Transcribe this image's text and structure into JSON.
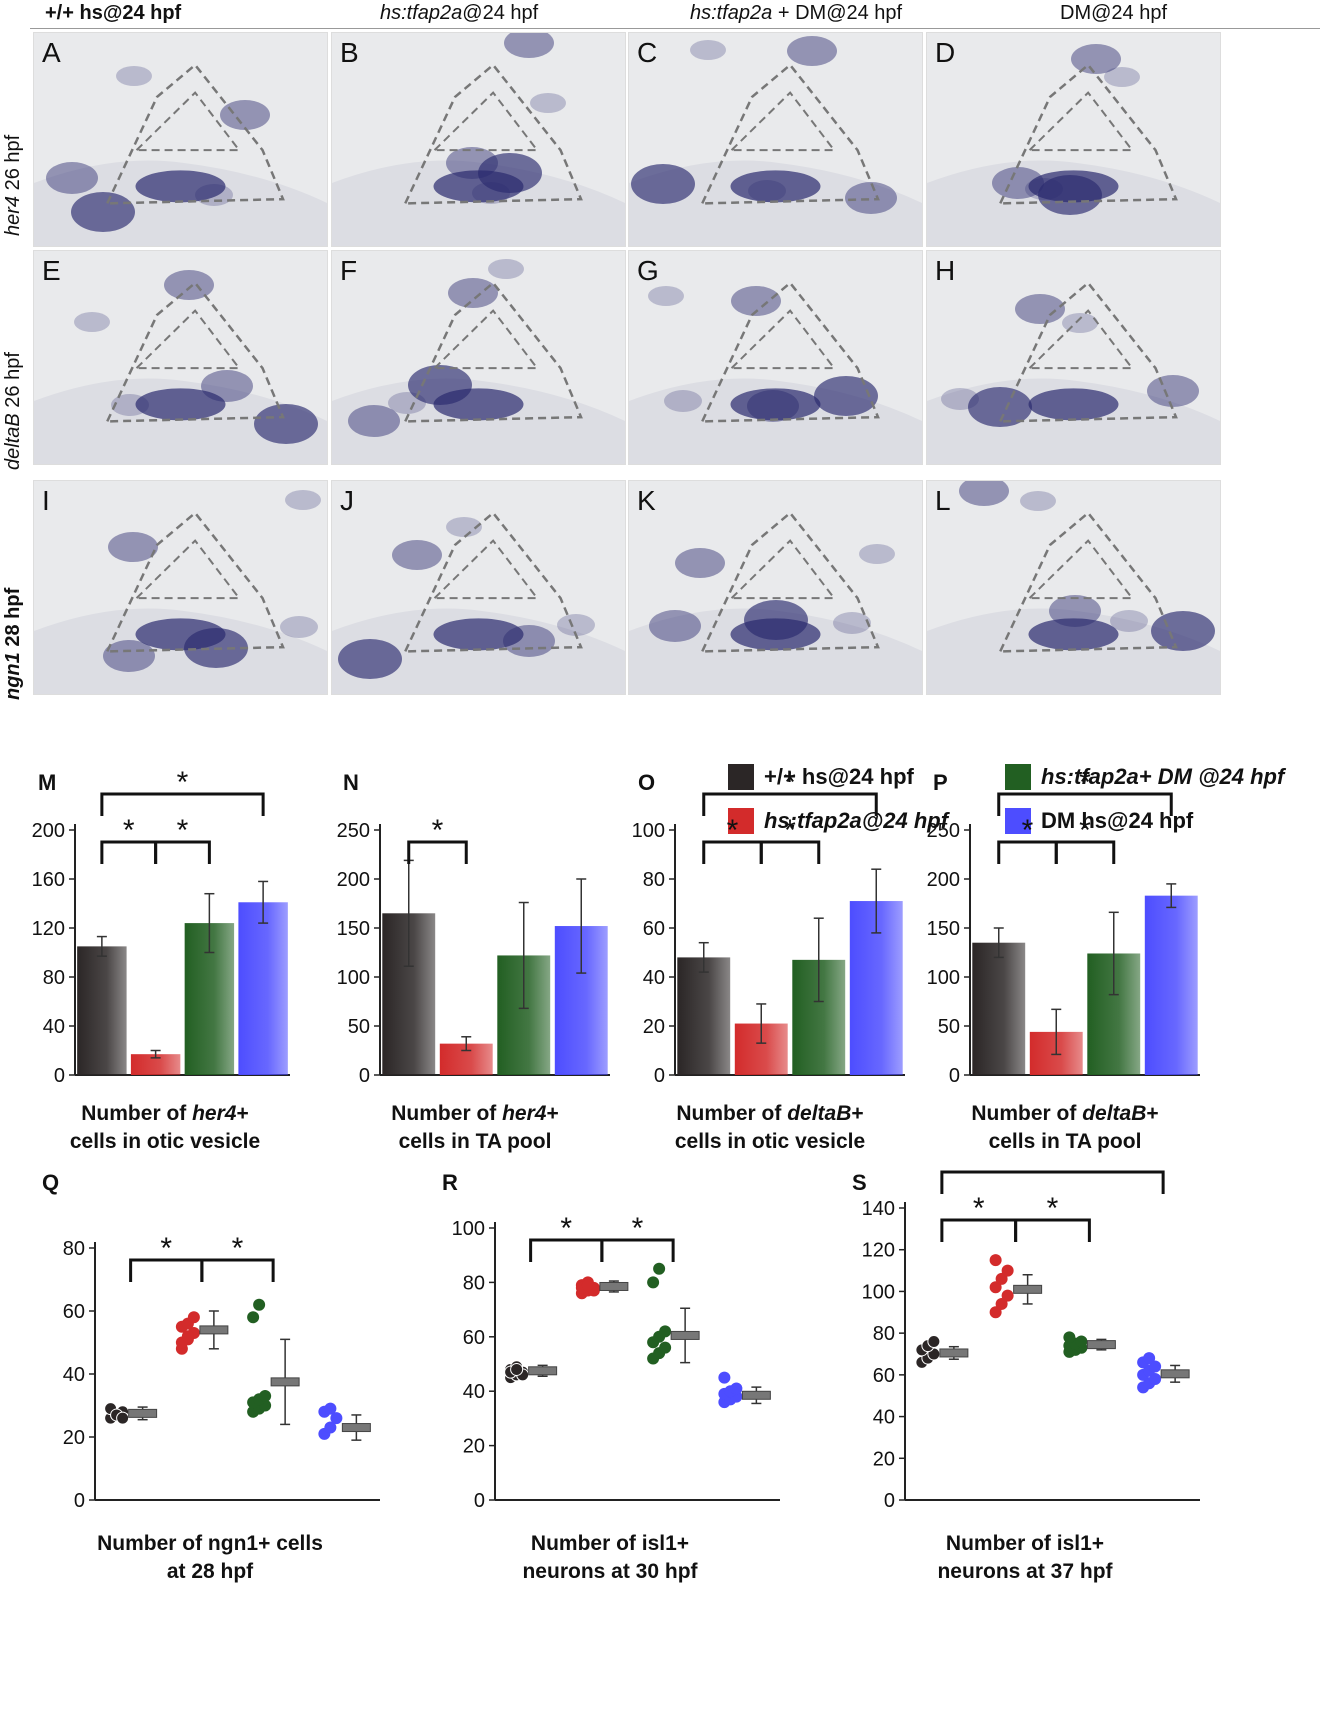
{
  "column_headers": [
    {
      "pre": "+/+ hs@24 hpf",
      "em": "",
      "post": "",
      "bold": true
    },
    {
      "pre": "",
      "em": "hs:tfap2a",
      "post": "@24 hpf",
      "bold": false
    },
    {
      "pre": "",
      "em": "hs:tfap2a",
      "post": " + DM@24 hpf",
      "bold": false
    },
    {
      "pre": "DM@24 hpf",
      "em": "",
      "post": "",
      "bold": false
    }
  ],
  "row_labels": [
    {
      "em": "her4",
      "post": " 26 hpf",
      "bold": false
    },
    {
      "em": "deltaB",
      "post": " 26 hpf",
      "bold": false
    },
    {
      "em": "ngn1",
      "post": " 28 hpf",
      "bold": true
    }
  ],
  "panel_letters": [
    "A",
    "B",
    "C",
    "D",
    "E",
    "F",
    "G",
    "H",
    "I",
    "J",
    "K",
    "L"
  ],
  "legend": [
    {
      "text": "+/+ hs@24 hpf",
      "color": "#2b2626"
    },
    {
      "text": "hs:tfap2a@24 hpf",
      "color": "#d32b2b"
    },
    {
      "text": "hs:tfap2a+ DM @24 hpf",
      "color": "#225f22"
    },
    {
      "text": "DM hs@24 hpf",
      "color": "#4d4dff"
    }
  ],
  "colors": {
    "black": "#2b2626",
    "red": "#d32b2b",
    "green": "#225f22",
    "blue": "#4d4dff",
    "stain": "#2a2a6e"
  },
  "chart_data": [
    {
      "id": "M",
      "type": "bar",
      "categories": [
        "+/+ hs@24 hpf",
        "hs:tfap2a@24 hpf",
        "hs:tfap2a+ DM @24 hpf",
        "DM hs@24 hpf"
      ],
      "values": [
        105,
        17,
        124,
        141
      ],
      "errors": [
        8,
        3,
        24,
        17
      ],
      "ylim": [
        0,
        200
      ],
      "yticks": [
        0,
        40,
        80,
        120,
        160,
        200
      ],
      "xlabel": "Number of her4+ cells in otic vesicle",
      "xlabel_parts": [
        "Number of ",
        "her4",
        "+",
        "cells in otic vesicle"
      ],
      "significance": [
        {
          "from": 0,
          "to": 1,
          "level": 1
        },
        {
          "from": 1,
          "to": 2,
          "level": 1
        },
        {
          "from": 0,
          "to": 3,
          "level": 2
        }
      ]
    },
    {
      "id": "N",
      "type": "bar",
      "categories": [
        "+/+ hs@24 hpf",
        "hs:tfap2a@24 hpf",
        "hs:tfap2a+ DM @24 hpf",
        "DM hs@24 hpf"
      ],
      "values": [
        165,
        32,
        122,
        152
      ],
      "errors": [
        54,
        7,
        54,
        48
      ],
      "ylim": [
        0,
        250
      ],
      "yticks": [
        0,
        50,
        100,
        150,
        200,
        250
      ],
      "xlabel": "Number of her4+ cells in TA pool",
      "xlabel_parts": [
        "Number of ",
        "her4",
        "+",
        "cells in TA pool"
      ],
      "significance": [
        {
          "from": 0,
          "to": 1,
          "level": 1
        }
      ]
    },
    {
      "id": "O",
      "type": "bar",
      "categories": [
        "+/+ hs@24 hpf",
        "hs:tfap2a@24 hpf",
        "hs:tfap2a+ DM @24 hpf",
        "DM hs@24 hpf"
      ],
      "values": [
        48,
        21,
        47,
        71
      ],
      "errors": [
        6,
        8,
        17,
        13
      ],
      "ylim": [
        0,
        100
      ],
      "yticks": [
        0,
        20,
        40,
        60,
        80,
        100
      ],
      "xlabel": "Number of deltaB+ cells in otic vesicle",
      "xlabel_parts": [
        "Number of ",
        "deltaB",
        "+",
        "cells in otic vesicle"
      ],
      "significance": [
        {
          "from": 0,
          "to": 1,
          "level": 1
        },
        {
          "from": 1,
          "to": 2,
          "level": 1
        },
        {
          "from": 0,
          "to": 3,
          "level": 2
        }
      ]
    },
    {
      "id": "P",
      "type": "bar",
      "categories": [
        "+/+ hs@24 hpf",
        "hs:tfap2a@24 hpf",
        "hs:tfap2a+ DM @24 hpf",
        "DM hs@24 hpf"
      ],
      "values": [
        135,
        44,
        124,
        183
      ],
      "errors": [
        15,
        23,
        42,
        12
      ],
      "ylim": [
        0,
        250
      ],
      "yticks": [
        0,
        50,
        100,
        150,
        200,
        250
      ],
      "xlabel": "Number of deltaB+ cells in TA pool",
      "xlabel_parts": [
        "Number of ",
        "deltaB",
        "+",
        "cells in TA pool"
      ],
      "significance": [
        {
          "from": 0,
          "to": 1,
          "level": 1
        },
        {
          "from": 1,
          "to": 2,
          "level": 1
        },
        {
          "from": 0,
          "to": 3,
          "level": 2
        }
      ]
    },
    {
      "id": "Q",
      "type": "scatter",
      "ylim": [
        0,
        80
      ],
      "yticks": [
        0,
        20,
        40,
        60,
        80
      ],
      "xlabel": "Number of ngn1+ cells at 28 hpf",
      "xlabel_parts": [
        "Number of ngn1+ cells",
        "at 28 hpf"
      ],
      "groups": [
        {
          "points": [
            26,
            27,
            28,
            29,
            27,
            26
          ],
          "mean": 27.5,
          "sd": 2
        },
        {
          "points": [
            48,
            51,
            53,
            55,
            56,
            58,
            50,
            52
          ],
          "mean": 54,
          "sd": 6
        },
        {
          "points": [
            28,
            29,
            30,
            31,
            32,
            33,
            58,
            62
          ],
          "mean": 37.5,
          "sd": 13.5
        },
        {
          "points": [
            21,
            23,
            26,
            28,
            29
          ],
          "mean": 23,
          "sd": 4
        }
      ],
      "significance": [
        {
          "from": 0,
          "to": 1,
          "level": 1
        },
        {
          "from": 1,
          "to": 2,
          "level": 1
        }
      ]
    },
    {
      "id": "R",
      "type": "scatter",
      "ylim": [
        0,
        100
      ],
      "yticks": [
        0,
        20,
        40,
        60,
        80,
        100
      ],
      "xlabel": "Number of isl1+ neurons at 30 hpf",
      "xlabel_parts": [
        "Number of isl1+",
        "neurons at 30 hpf"
      ],
      "groups": [
        {
          "points": [
            45,
            46,
            47,
            48,
            49,
            46,
            47,
            48
          ],
          "mean": 47.5,
          "sd": 2
        },
        {
          "points": [
            76,
            77,
            78,
            79,
            80,
            77,
            78,
            79
          ],
          "mean": 78.5,
          "sd": 2
        },
        {
          "points": [
            52,
            54,
            56,
            58,
            60,
            62,
            80,
            85
          ],
          "mean": 60.5,
          "sd": 10
        },
        {
          "points": [
            36,
            37,
            38,
            39,
            40,
            41,
            45
          ],
          "mean": 38.5,
          "sd": 3
        }
      ],
      "significance": [
        {
          "from": 0,
          "to": 1,
          "level": 1
        },
        {
          "from": 1,
          "to": 2,
          "level": 1
        }
      ]
    },
    {
      "id": "S",
      "type": "scatter",
      "ylim": [
        0,
        140
      ],
      "yticks": [
        0,
        20,
        40,
        60,
        80,
        100,
        120,
        140
      ],
      "xlabel": "Number of isl1+ neurons at 37 hpf",
      "xlabel_parts": [
        "Number of isl1+",
        "neurons at 37 hpf"
      ],
      "groups": [
        {
          "points": [
            66,
            68,
            70,
            72,
            74,
            76
          ],
          "mean": 70.5,
          "sd": 3
        },
        {
          "points": [
            90,
            94,
            98,
            102,
            106,
            110,
            115
          ],
          "mean": 101,
          "sd": 7
        },
        {
          "points": [
            71,
            72,
            73,
            74,
            75,
            76,
            78
          ],
          "mean": 74.5,
          "sd": 2.5
        },
        {
          "points": [
            54,
            56,
            58,
            60,
            62,
            64,
            66,
            68
          ],
          "mean": 60.5,
          "sd": 4
        }
      ],
      "significance": [
        {
          "from": 0,
          "to": 1,
          "level": 1
        },
        {
          "from": 1,
          "to": 2,
          "level": 1
        },
        {
          "from": 0,
          "to": 3,
          "level": 2
        }
      ]
    }
  ]
}
